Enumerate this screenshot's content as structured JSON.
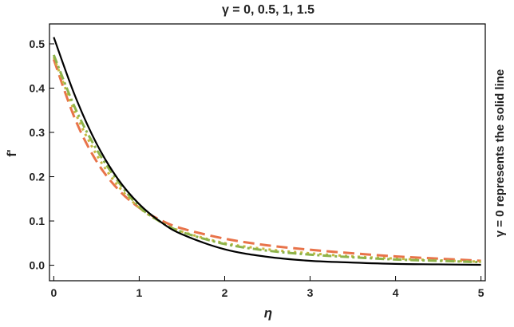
{
  "chart_data": {
    "type": "line",
    "title": "γ = 0, 0.5, 1, 1.5",
    "xlabel": "η",
    "ylabel": "f'",
    "side_annotation": "γ = 0 represents the solid line",
    "xlim": [
      -0.05,
      5.05
    ],
    "ylim": [
      -0.035,
      0.545
    ],
    "x_ticks": [
      0,
      1,
      2,
      3,
      4,
      5
    ],
    "x_tick_labels": [
      "0",
      "1",
      "2",
      "3",
      "4",
      "5"
    ],
    "y_ticks": [
      0.0,
      0.1,
      0.2,
      0.3,
      0.4,
      0.5
    ],
    "y_tick_labels": [
      "0.0",
      "0.1",
      "0.2",
      "0.3",
      "0.4",
      "0.5"
    ],
    "grid": false,
    "series": [
      {
        "color": "#000000",
        "dash": "solid",
        "x": [
          0,
          0.25,
          0.5,
          0.75,
          1.0,
          1.25,
          1.5,
          2.0,
          2.5,
          3.0,
          3.5,
          4.0,
          4.5,
          5.0
        ],
        "y": [
          0.515,
          0.382,
          0.275,
          0.195,
          0.138,
          0.098,
          0.07,
          0.036,
          0.019,
          0.01,
          0.006,
          0.003,
          0.002,
          0.001
        ]
      },
      {
        "color": "#e8734a",
        "dash": "dashed",
        "x": [
          0,
          0.25,
          0.5,
          0.75,
          1.0,
          1.25,
          1.5,
          2.0,
          2.5,
          3.0,
          3.5,
          4.0,
          4.5,
          5.0
        ],
        "y": [
          0.465,
          0.33,
          0.235,
          0.172,
          0.13,
          0.102,
          0.083,
          0.06,
          0.045,
          0.035,
          0.027,
          0.02,
          0.015,
          0.01
        ]
      },
      {
        "color": "#c8b840",
        "dash": "dotted",
        "x": [
          0,
          0.25,
          0.5,
          0.75,
          1.0,
          1.25,
          1.5,
          2.0,
          2.5,
          3.0,
          3.5,
          4.0,
          4.5,
          5.0
        ],
        "y": [
          0.47,
          0.345,
          0.25,
          0.18,
          0.13,
          0.098,
          0.076,
          0.05,
          0.036,
          0.027,
          0.02,
          0.015,
          0.011,
          0.008
        ]
      },
      {
        "color": "#8db34a",
        "dash": "dashdot",
        "x": [
          0,
          0.25,
          0.5,
          0.75,
          1.0,
          1.25,
          1.5,
          2.0,
          2.5,
          3.0,
          3.5,
          4.0,
          4.5,
          5.0
        ],
        "y": [
          0.475,
          0.355,
          0.262,
          0.19,
          0.132,
          0.098,
          0.075,
          0.048,
          0.033,
          0.024,
          0.018,
          0.013,
          0.01,
          0.007
        ]
      }
    ]
  }
}
